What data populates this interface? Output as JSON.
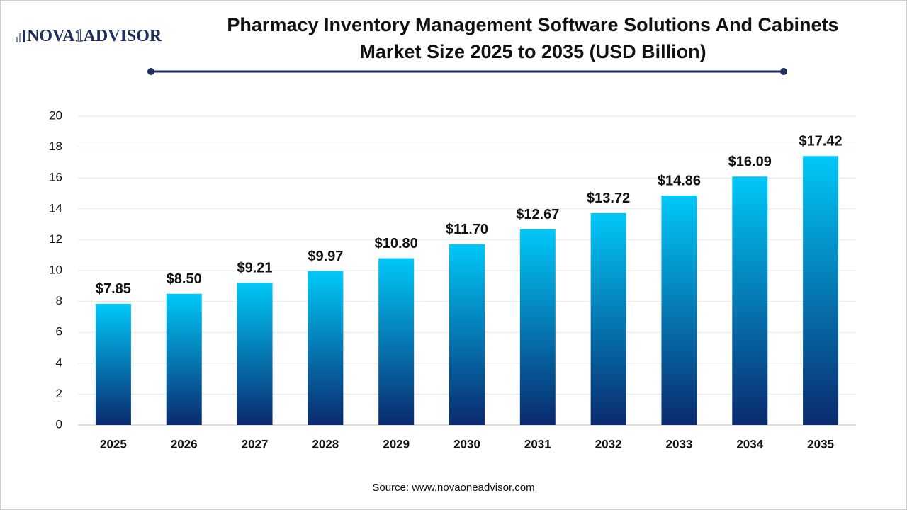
{
  "logo": {
    "left": "NOVA",
    "mark": "1",
    "right": "ADVISOR"
  },
  "chart_data": {
    "type": "bar",
    "title": "Pharmacy Inventory Management Software Solutions And Cabinets Market Size 2025 to 2035 (USD Billion)",
    "categories": [
      "2025",
      "2026",
      "2027",
      "2028",
      "2029",
      "2030",
      "2031",
      "2032",
      "2033",
      "2034",
      "2035"
    ],
    "values": [
      7.85,
      8.5,
      9.21,
      9.97,
      10.8,
      11.7,
      12.67,
      13.72,
      14.86,
      16.09,
      17.42
    ],
    "value_labels": [
      "$7.85",
      "$8.50",
      "$9.21",
      "$9.97",
      "$10.80",
      "$11.70",
      "$12.67",
      "$13.72",
      "$14.86",
      "$16.09",
      "$17.42"
    ],
    "color": [
      "#00c8f8",
      "#0a2a6e"
    ],
    "ylim": [
      0,
      20
    ],
    "yticks": [
      0,
      2,
      4,
      6,
      8,
      10,
      12,
      14,
      16,
      18,
      20
    ],
    "grid": true,
    "source": "Source: www.novaoneadvisor.com"
  }
}
